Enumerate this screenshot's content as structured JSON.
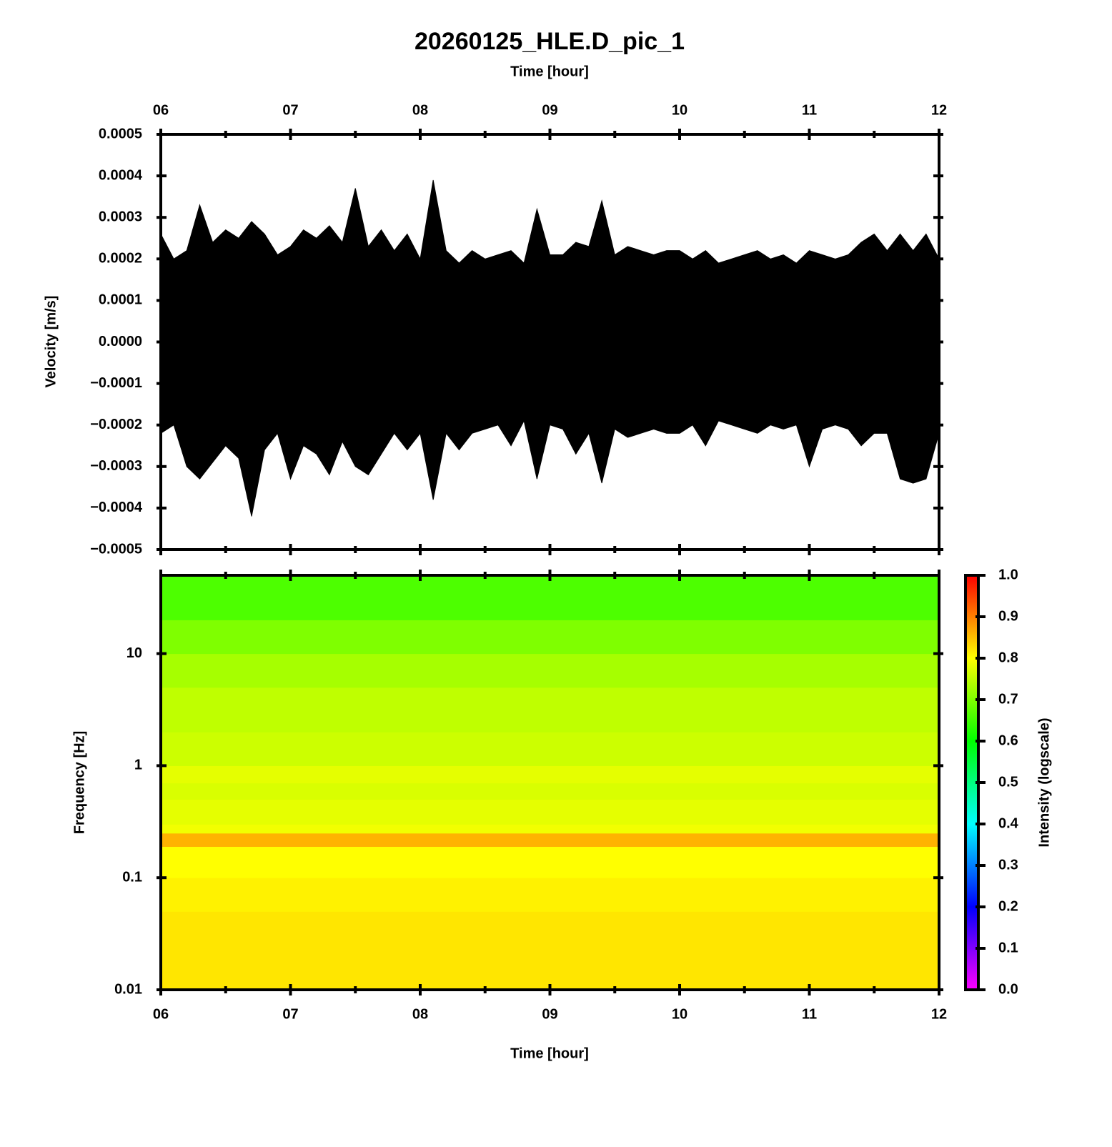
{
  "chart_data": [
    {
      "type": "waveform",
      "title": "20260125_HLE.D_pic_1",
      "top_xlabel": "Time [hour]",
      "ylabel": "Velocity [m/s]",
      "color": "#000000",
      "x": [
        6.0,
        6.1,
        6.2,
        6.3,
        6.4,
        6.5,
        6.6,
        6.7,
        6.8,
        6.9,
        7.0,
        7.1,
        7.2,
        7.3,
        7.4,
        7.5,
        7.6,
        7.7,
        7.8,
        7.9,
        8.0,
        8.1,
        8.2,
        8.3,
        8.4,
        8.5,
        8.6,
        8.7,
        8.8,
        8.9,
        9.0,
        9.1,
        9.2,
        9.3,
        9.4,
        9.5,
        9.6,
        9.7,
        9.8,
        9.9,
        10.0,
        10.1,
        10.2,
        10.3,
        10.4,
        10.5,
        10.6,
        10.7,
        10.8,
        10.9,
        11.0,
        11.1,
        11.2,
        11.3,
        11.4,
        11.5,
        11.6,
        11.7,
        11.8,
        11.9,
        12.0
      ],
      "upper": [
        0.00026,
        0.0002,
        0.00022,
        0.00033,
        0.00024,
        0.00027,
        0.00025,
        0.00029,
        0.00026,
        0.00021,
        0.00023,
        0.00027,
        0.00025,
        0.00028,
        0.00024,
        0.00037,
        0.00023,
        0.00027,
        0.00022,
        0.00026,
        0.0002,
        0.00039,
        0.00022,
        0.00019,
        0.00022,
        0.0002,
        0.00021,
        0.00022,
        0.00019,
        0.00032,
        0.00021,
        0.00021,
        0.00024,
        0.00023,
        0.00034,
        0.00021,
        0.00023,
        0.00022,
        0.00021,
        0.00022,
        0.00022,
        0.0002,
        0.00022,
        0.00019,
        0.0002,
        0.00021,
        0.00022,
        0.0002,
        0.00021,
        0.00019,
        0.00022,
        0.00021,
        0.0002,
        0.00021,
        0.00024,
        0.00026,
        0.00022,
        0.00026,
        0.00022,
        0.00026,
        0.0002
      ],
      "lower": [
        -0.00022,
        -0.0002,
        -0.0003,
        -0.00033,
        -0.00029,
        -0.00025,
        -0.00028,
        -0.00042,
        -0.00026,
        -0.00022,
        -0.00033,
        -0.00025,
        -0.00027,
        -0.00032,
        -0.00024,
        -0.0003,
        -0.00032,
        -0.00027,
        -0.00022,
        -0.00026,
        -0.00022,
        -0.00038,
        -0.00022,
        -0.00026,
        -0.00022,
        -0.00021,
        -0.0002,
        -0.00025,
        -0.00019,
        -0.00033,
        -0.0002,
        -0.00021,
        -0.00027,
        -0.00022,
        -0.00034,
        -0.00021,
        -0.00023,
        -0.00022,
        -0.00021,
        -0.00022,
        -0.00022,
        -0.0002,
        -0.00025,
        -0.00019,
        -0.0002,
        -0.00021,
        -0.00022,
        -0.0002,
        -0.00021,
        -0.0002,
        -0.0003,
        -0.00021,
        -0.0002,
        -0.00021,
        -0.00025,
        -0.00022,
        -0.00022,
        -0.00033,
        -0.00034,
        -0.00033,
        -0.00022
      ],
      "xlim": [
        6,
        12
      ],
      "xticks": [
        {
          "value": 6,
          "label": "06"
        },
        {
          "value": 7,
          "label": "07"
        },
        {
          "value": 8,
          "label": "08"
        },
        {
          "value": 9,
          "label": "09"
        },
        {
          "value": 10,
          "label": "10"
        },
        {
          "value": 11,
          "label": "11"
        },
        {
          "value": 12,
          "label": "12"
        }
      ],
      "ylim": [
        -0.0005,
        0.0005
      ],
      "yticks": [
        {
          "value": -0.0005,
          "label": "−0.0005"
        },
        {
          "value": -0.0004,
          "label": "−0.0004"
        },
        {
          "value": -0.0003,
          "label": "−0.0003"
        },
        {
          "value": -0.0002,
          "label": "−0.0002"
        },
        {
          "value": -0.0001,
          "label": "−0.0001"
        },
        {
          "value": 0,
          "label": "0.0000"
        },
        0.0001,
        0.0002,
        0.0003,
        0.0004,
        0.0005
      ]
    },
    {
      "type": "spectrogram",
      "xlabel": "Time [hour]",
      "ylabel": "Frequency [Hz]",
      "log_y": true,
      "ybins": [
        0.01,
        0.02,
        0.05,
        0.1,
        0.15,
        0.19,
        0.25,
        0.3,
        0.5,
        0.7,
        1,
        2,
        5,
        10,
        20,
        50
      ],
      "values": [
        0.82,
        0.82,
        0.81,
        0.8,
        0.8,
        0.86,
        0.79,
        0.78,
        0.77,
        0.78,
        0.76,
        0.75,
        0.73,
        0.7,
        0.66
      ],
      "xlim": [
        6,
        12
      ],
      "xticks": [
        {
          "value": 6,
          "label": "06"
        },
        {
          "value": 7,
          "label": "07"
        },
        {
          "value": 8,
          "label": "08"
        },
        {
          "value": 9,
          "label": "09"
        },
        {
          "value": 10,
          "label": "10"
        },
        {
          "value": 11,
          "label": "11"
        },
        {
          "value": 12,
          "label": "12"
        }
      ],
      "ylim": [
        0.01,
        50
      ],
      "yticks": [
        0.01,
        0.1,
        1,
        10
      ],
      "colorbar": {
        "label": "Intensity (logscale)",
        "lim": [
          0,
          1
        ],
        "ticks": [
          {
            "value": 0,
            "label": "0.0"
          },
          0.1,
          0.2,
          0.3,
          0.4,
          0.5,
          0.6,
          0.7,
          0.8,
          0.9,
          {
            "value": 1,
            "label": "1.0"
          }
        ],
        "stops": [
          [
            0,
            "#ff00ff"
          ],
          [
            0.2,
            "#0000ff"
          ],
          [
            0.4,
            "#00ffff"
          ],
          [
            0.6,
            "#00ff00"
          ],
          [
            0.8,
            "#ffff00"
          ],
          [
            1,
            "#ff0000"
          ]
        ]
      }
    }
  ]
}
